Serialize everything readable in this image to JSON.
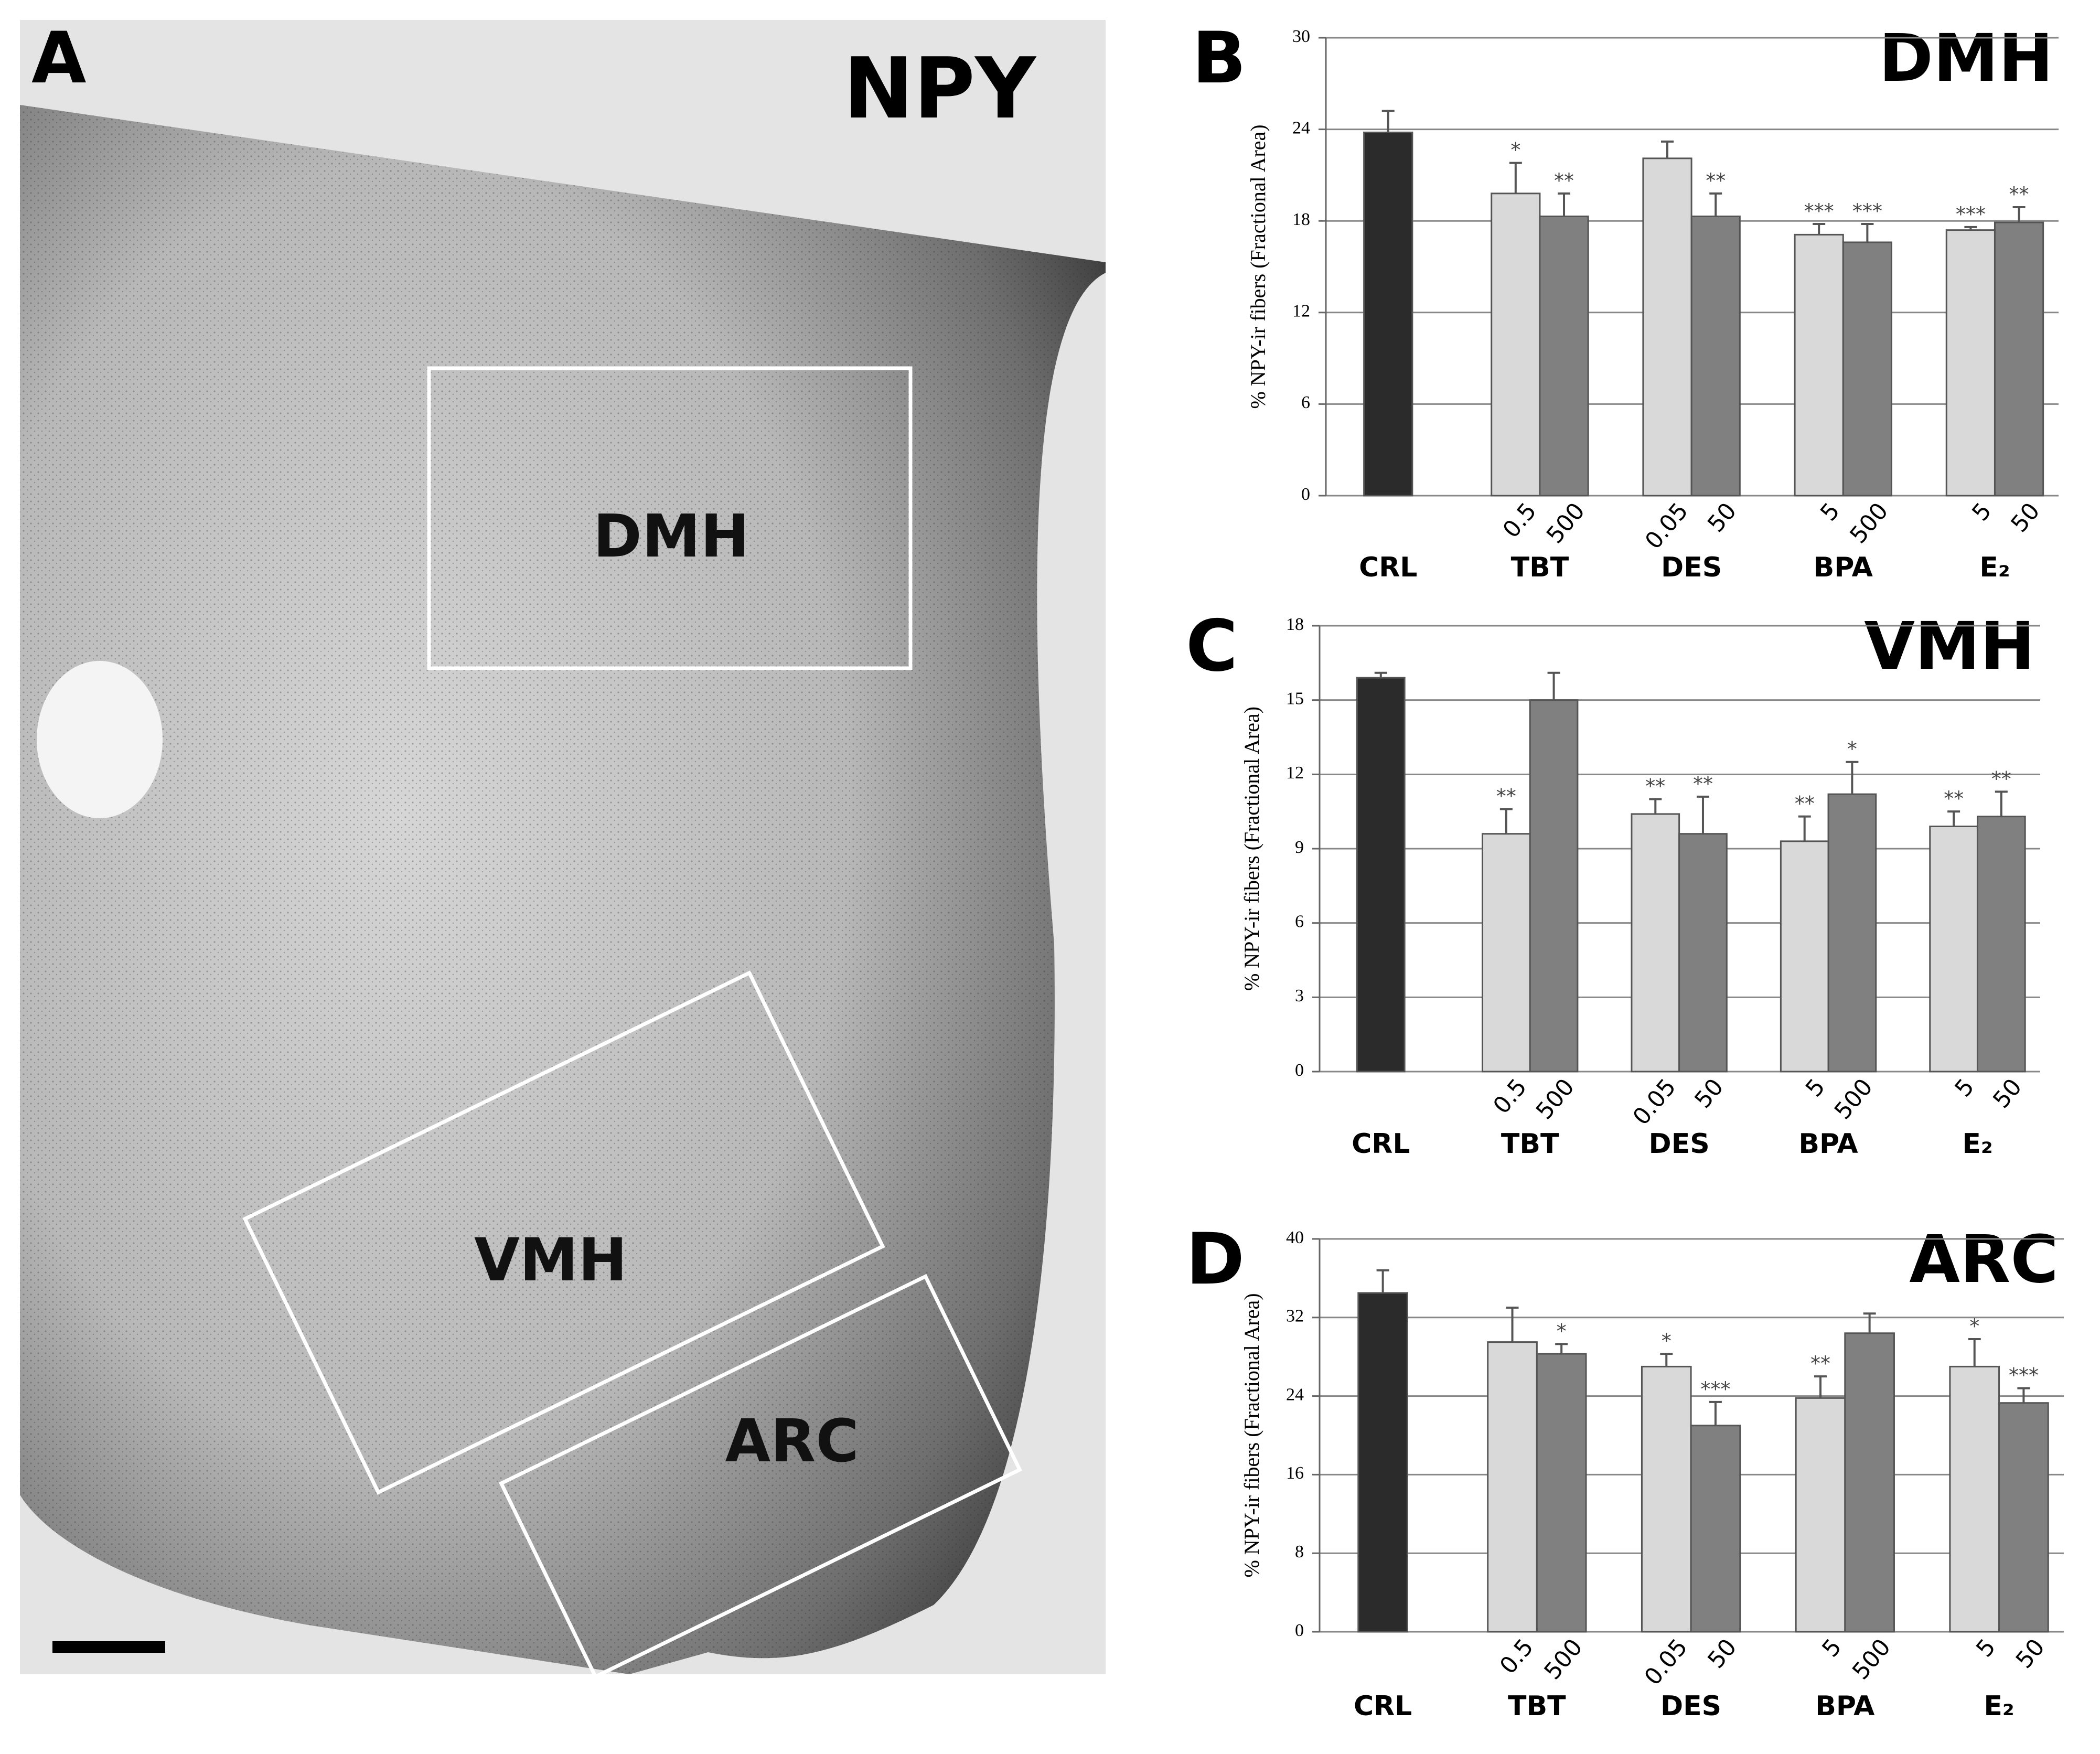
{
  "panel_a": {
    "label": "A",
    "title": "NPY",
    "regions": [
      "DMH",
      "VMH",
      "ARC"
    ]
  },
  "chart_data": [
    {
      "type": "bar",
      "panel": "B",
      "title": "DMH",
      "y_label": "% NPY-ir fibers (Fractional Area)",
      "groups": [
        "CRL",
        "TBT",
        "DES",
        "BPA",
        "E₂"
      ],
      "categories": [
        null,
        "0.5",
        "500",
        "0.05",
        "50",
        "5",
        "500",
        "5",
        "50"
      ],
      "values": [
        23.8,
        19.8,
        18.3,
        22.1,
        18.3,
        17.1,
        16.6,
        17.4,
        17.9
      ],
      "errors": [
        1.4,
        2.0,
        1.5,
        1.1,
        1.5,
        0.7,
        1.2,
        0.2,
        1.0
      ],
      "annotations": [
        null,
        "*",
        "**",
        null,
        "**",
        "***",
        "***",
        "***",
        "**"
      ],
      "colors": [
        "#2b2b2b",
        "#d9d9d9",
        "#808080",
        "#d9d9d9",
        "#808080",
        "#d9d9d9",
        "#808080",
        "#d9d9d9",
        "#808080"
      ],
      "ylim": [
        0,
        30
      ],
      "yticks": [
        0,
        6,
        12,
        18,
        24,
        30
      ],
      "grid": true
    },
    {
      "type": "bar",
      "panel": "C",
      "title": "VMH",
      "y_label": "% NPY-ir fibers (Fractional Area)",
      "groups": [
        "CRL",
        "TBT",
        "DES",
        "BPA",
        "E₂"
      ],
      "categories": [
        null,
        "0.5",
        "500",
        "0.05",
        "50",
        "5",
        "500",
        "5",
        "50"
      ],
      "values": [
        15.9,
        9.6,
        15.0,
        10.4,
        9.6,
        9.3,
        11.2,
        9.9,
        10.3
      ],
      "errors": [
        0.2,
        1.0,
        1.1,
        0.6,
        1.5,
        1.0,
        1.3,
        0.6,
        1.0
      ],
      "annotations": [
        null,
        "**",
        null,
        "**",
        "**",
        "**",
        "*",
        "**",
        "**"
      ],
      "colors": [
        "#2b2b2b",
        "#d9d9d9",
        "#808080",
        "#d9d9d9",
        "#808080",
        "#d9d9d9",
        "#808080",
        "#d9d9d9",
        "#808080"
      ],
      "ylim": [
        0,
        18
      ],
      "yticks": [
        0,
        3,
        6,
        9,
        12,
        15,
        18
      ],
      "grid": true
    },
    {
      "type": "bar",
      "panel": "D",
      "title": "ARC",
      "y_label": "% NPY-ir fibers (Fractional Area)",
      "groups": [
        "CRL",
        "TBT",
        "DES",
        "BPA",
        "E₂"
      ],
      "categories": [
        null,
        "0.5",
        "500",
        "0.05",
        "50",
        "5",
        "500",
        "5",
        "50"
      ],
      "values": [
        34.5,
        29.5,
        28.3,
        27.0,
        21.0,
        23.8,
        30.4,
        27.0,
        23.3
      ],
      "errors": [
        2.3,
        3.5,
        1.0,
        1.3,
        2.4,
        2.2,
        2.0,
        2.8,
        1.5
      ],
      "annotations": [
        null,
        null,
        "*",
        "*",
        "***",
        "**",
        null,
        "*",
        "***"
      ],
      "colors": [
        "#2b2b2b",
        "#d9d9d9",
        "#808080",
        "#d9d9d9",
        "#808080",
        "#d9d9d9",
        "#808080",
        "#d9d9d9",
        "#808080"
      ],
      "ylim": [
        0,
        40
      ],
      "yticks": [
        0,
        8,
        16,
        24,
        32,
        40
      ],
      "grid": true
    }
  ]
}
